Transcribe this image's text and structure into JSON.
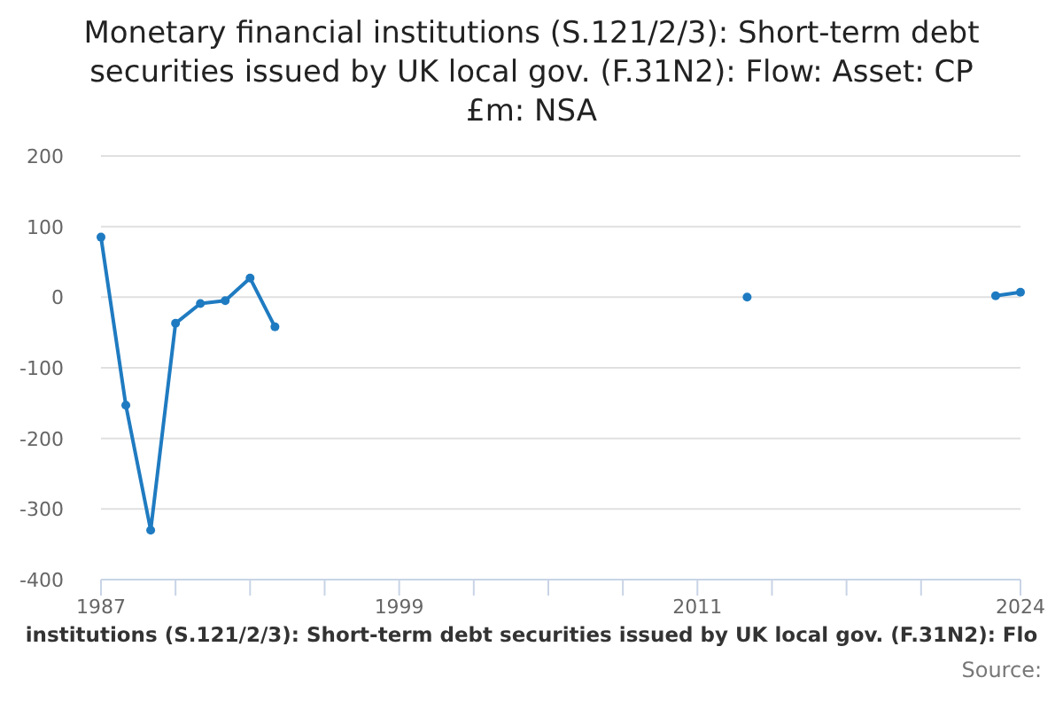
{
  "chart_data": {
    "type": "line",
    "title": "Monetary financial institutions (S.121/2/3): Short-term debt securities issued by UK local gov. (F.31N2): Flow: Asset: CP £m: NSA",
    "x": [
      1987,
      1988,
      1989,
      1990,
      1991,
      1992,
      1993,
      1994,
      1995,
      1996,
      1997,
      1998,
      1999,
      2000,
      2001,
      2002,
      2003,
      2004,
      2005,
      2006,
      2007,
      2008,
      2009,
      2010,
      2011,
      2012,
      2013,
      2014,
      2015,
      2016,
      2017,
      2018,
      2019,
      2020,
      2021,
      2022,
      2023,
      2024
    ],
    "series": [
      {
        "name": "institutions (S.121/2/3): Short-term debt securities issued by UK local gov. (F.31N2): Flo",
        "color": "#1f7bc1",
        "values": [
          85,
          -153,
          -330,
          -37,
          -9,
          -5,
          27,
          -42,
          null,
          null,
          null,
          null,
          null,
          null,
          null,
          null,
          null,
          null,
          null,
          null,
          null,
          null,
          null,
          null,
          null,
          null,
          0,
          null,
          null,
          null,
          null,
          null,
          null,
          null,
          null,
          null,
          2,
          7
        ]
      }
    ],
    "xlim": [
      1987,
      2024
    ],
    "xticks": [
      1987,
      {
        "value": 1990,
        "label": null
      },
      {
        "value": 1993,
        "label": null
      },
      {
        "value": 1996,
        "label": null
      },
      1999,
      {
        "value": 2002,
        "label": null
      },
      {
        "value": 2005,
        "label": null
      },
      {
        "value": 2008,
        "label": null
      },
      2011,
      {
        "value": 2014,
        "label": null
      },
      {
        "value": 2017,
        "label": null
      },
      {
        "value": 2020,
        "label": null
      },
      2024
    ],
    "ylim": [
      -400,
      200
    ],
    "yticks": [
      -400,
      -300,
      -200,
      -100,
      0,
      100,
      200
    ],
    "grid": "y",
    "legend": "bottom",
    "marker": "circle",
    "line_style": "solid",
    "annotations": [
      "Source:"
    ]
  }
}
